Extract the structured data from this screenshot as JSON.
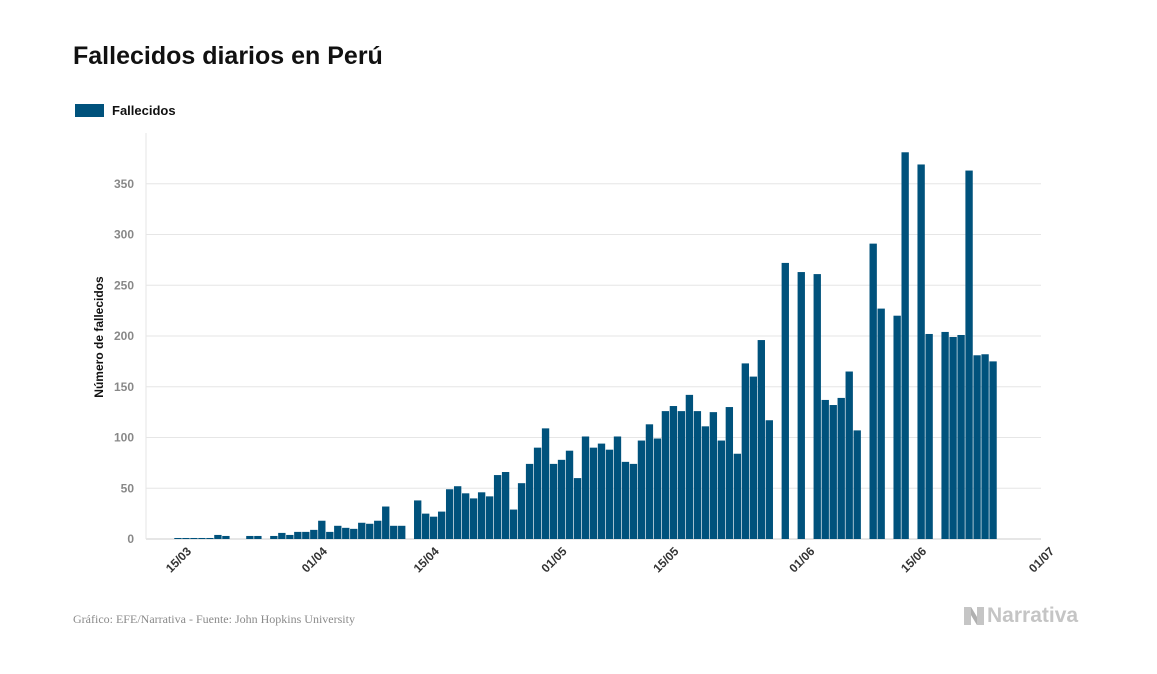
{
  "title": "Fallecidos diarios en Perú",
  "legend": {
    "label": "Fallecidos"
  },
  "source": "Gráfico: EFE/Narrativa - Fuente: John Hopkins University",
  "brand": {
    "name": "Narrativa",
    "icon": "narrativa-n-logo"
  },
  "colors": {
    "bar": "#00527c",
    "grid": "#e6e6e6",
    "axis": "#cccccc"
  },
  "chart_data": {
    "type": "bar",
    "title": "Fallecidos diarios en Perú",
    "xlabel": "",
    "ylabel": "Número de fallecidos",
    "ylim": [
      0,
      400
    ],
    "y_ticks": [
      0,
      50,
      100,
      150,
      200,
      250,
      300,
      350
    ],
    "x_ticks": [
      "15/03",
      "01/04",
      "15/04",
      "01/05",
      "15/05",
      "01/06",
      "15/06",
      "01/07"
    ],
    "x_tick_days": [
      0,
      17,
      31,
      47,
      61,
      78,
      92,
      108
    ],
    "x_start": "15/03",
    "x_range_days": [
      -4,
      108
    ],
    "grid": true,
    "legend_position": "top-left",
    "series": [
      {
        "name": "Fallecidos",
        "values": [
          1,
          1,
          1,
          1,
          1,
          4,
          3,
          0,
          0,
          3,
          3,
          0,
          3,
          6,
          4,
          7,
          7,
          9,
          18,
          7,
          13,
          11,
          10,
          16,
          15,
          18,
          32,
          13,
          13,
          0,
          38,
          25,
          22,
          27,
          49,
          52,
          45,
          40,
          46,
          42,
          63,
          66,
          29,
          55,
          74,
          90,
          109,
          74,
          78,
          87,
          60,
          101,
          90,
          94,
          88,
          101,
          76,
          74,
          97,
          113,
          99,
          126,
          131,
          126,
          142,
          126,
          111,
          125,
          97,
          130,
          84,
          173,
          160,
          196,
          117,
          0,
          272,
          0,
          263,
          0,
          261,
          137,
          132,
          139,
          165,
          107,
          0,
          291,
          227,
          0,
          220,
          381,
          0,
          369,
          202,
          0,
          204,
          199,
          201,
          363,
          181,
          182,
          175,
          0,
          0,
          0,
          0,
          0,
          0,
          0,
          0,
          0,
          0,
          0,
          0
        ]
      }
    ]
  }
}
